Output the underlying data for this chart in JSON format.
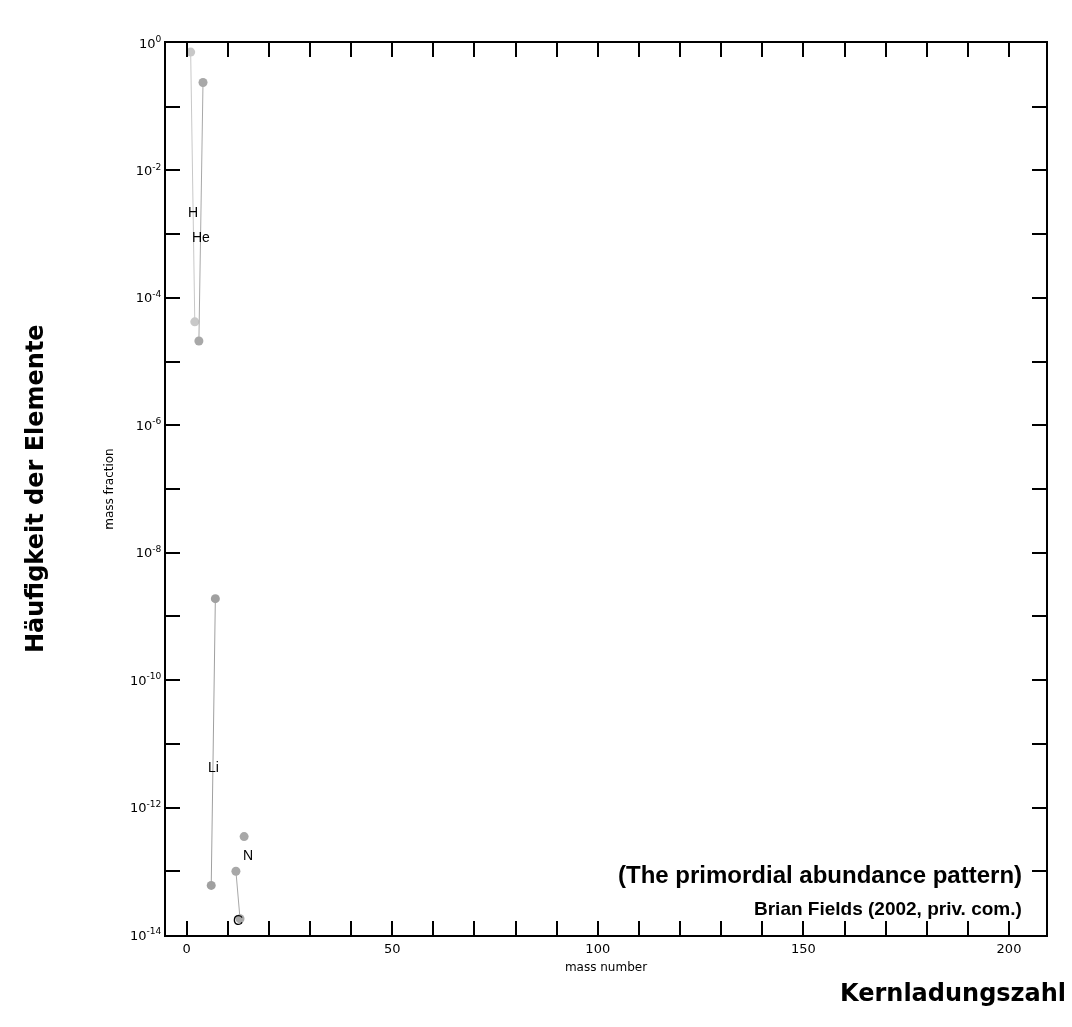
{
  "chart_data": {
    "type": "line",
    "xlabel": "mass number",
    "ylabel": "mass fraction",
    "annotations": [
      "(The primordial abundance pattern)",
      "Brian Fields (2002, priv. com.)",
      "Häufigkeit der Elemente",
      "Kernladungszahl"
    ],
    "series": [
      {
        "name": "H",
        "color": "#c8c8c8",
        "x": [
          1,
          2
        ],
        "values": [
          0.72,
          4.2e-05
        ]
      },
      {
        "name": "He",
        "color": "#a8a8a8",
        "x": [
          3,
          4
        ],
        "values": [
          2.1e-05,
          0.24
        ]
      },
      {
        "name": "Li",
        "color": "#a0a0a0",
        "x": [
          6,
          7
        ],
        "values": [
          6e-14,
          1.9e-09
        ]
      },
      {
        "name": "C",
        "color": "#a8a8a8",
        "x": [
          12,
          13
        ],
        "values": [
          1e-13,
          1.8e-14
        ]
      },
      {
        "name": "N",
        "color": "#a8a8a8",
        "x": [
          14
        ],
        "values": [
          3.5e-13
        ]
      }
    ],
    "xlim": [
      -5,
      209
    ],
    "ylim": [
      1e-14,
      1
    ],
    "log": "y",
    "xticks": [
      0,
      {
        "value": 10,
        "label": null
      },
      {
        "value": 20,
        "label": null
      },
      {
        "value": 30,
        "label": null
      },
      {
        "value": 40,
        "label": null
      },
      50,
      {
        "value": 60,
        "label": null
      },
      {
        "value": 70,
        "label": null
      },
      {
        "value": 80,
        "label": null
      },
      {
        "value": 90,
        "label": null
      },
      100,
      {
        "value": 110,
        "label": null
      },
      {
        "value": 120,
        "label": null
      },
      {
        "value": 130,
        "label": null
      },
      {
        "value": 140,
        "label": null
      },
      150,
      {
        "value": 160,
        "label": null
      },
      {
        "value": 170,
        "label": null
      },
      {
        "value": 180,
        "label": null
      },
      {
        "value": 190,
        "label": null
      },
      200
    ],
    "yticks": [
      {
        "value": 1,
        "label": "10$^{0}$"
      },
      {
        "value": 0.1,
        "label": null
      },
      {
        "value": 0.01,
        "label": "10$^{-2}$"
      },
      {
        "value": 0.001,
        "label": null
      },
      {
        "value": 0.0001,
        "label": "10$^{-4}$"
      },
      {
        "value": 1e-05,
        "label": null
      },
      {
        "value": 1e-06,
        "label": "10$^{-6}$"
      },
      {
        "value": 1e-07,
        "label": null
      },
      {
        "value": 1e-08,
        "label": "10$^{-8}$"
      },
      {
        "value": 1e-09,
        "label": null
      },
      {
        "value": 1e-10,
        "label": "10$^{-10}$"
      },
      {
        "value": 1e-11,
        "label": null
      },
      {
        "value": 1e-12,
        "label": "10$^{-12}$"
      },
      {
        "value": 1e-13,
        "label": null
      },
      {
        "value": 1e-14,
        "label": "10$^{-14}$"
      }
    ],
    "grid": false,
    "legend": false,
    "marker": "circle",
    "line_style": "solid"
  }
}
